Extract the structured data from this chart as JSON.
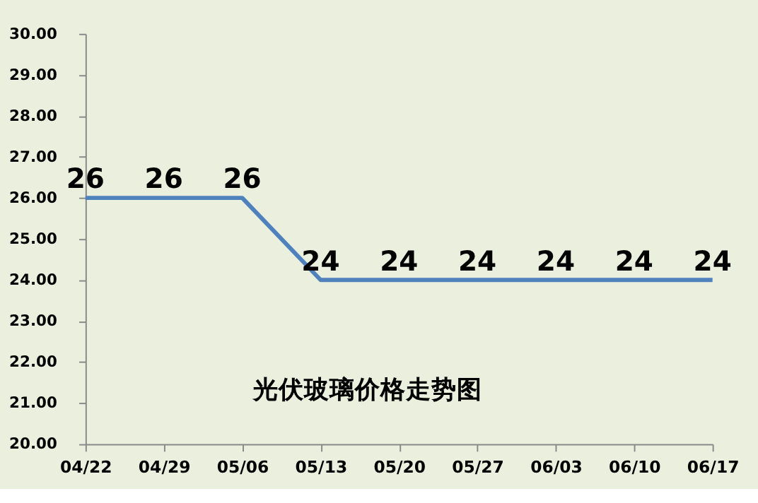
{
  "chart_data": {
    "type": "line",
    "title": "光伏玻璃价格走势图",
    "categories": [
      "04/22",
      "04/29",
      "05/06",
      "05/13",
      "05/20",
      "05/27",
      "06/03",
      "06/10",
      "06/17"
    ],
    "series": [
      {
        "color": "#4f81bd",
        "values": [
          26,
          26,
          26,
          24,
          24,
          24,
          24,
          24,
          24
        ]
      }
    ],
    "ylim": [
      20,
      30
    ],
    "yticks": [
      {
        "value": 20,
        "label": "20.00"
      },
      {
        "value": 21,
        "label": "21.00"
      },
      {
        "value": 22,
        "label": "22.00"
      },
      {
        "value": 23,
        "label": "23.00"
      },
      {
        "value": 24,
        "label": "24.00"
      },
      {
        "value": 25,
        "label": "25.00"
      },
      {
        "value": 26,
        "label": "26.00"
      },
      {
        "value": 27,
        "label": "27.00"
      },
      {
        "value": 28,
        "label": "28.00"
      },
      {
        "value": 29,
        "label": "29.00"
      },
      {
        "value": 30,
        "label": "30.00"
      }
    ],
    "data_labels": true,
    "grid": false,
    "legend": false,
    "marker": "none",
    "line_style": "solid"
  }
}
